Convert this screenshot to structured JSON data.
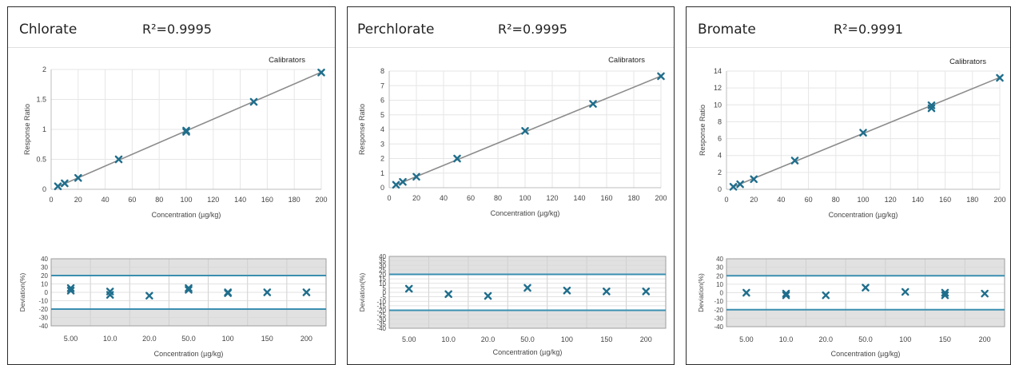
{
  "chart_data": [
    {
      "type": "scatter",
      "title": "Chlorate",
      "r2": "R²=0.9995",
      "legend": "Calibrators",
      "legend_position": "top-right",
      "calibration": {
        "xlabel": "Concentration (µg/kg)",
        "ylabel": "Response Ratio",
        "xlim": [
          0,
          200
        ],
        "ylim": [
          0,
          2
        ],
        "xticks": [
          "0",
          "20",
          "40",
          "60",
          "80",
          "100",
          "120",
          "140",
          "160",
          "180",
          "200"
        ],
        "yticks": [
          "0",
          "0.5",
          "1",
          "1.5",
          "2"
        ],
        "points": [
          [
            5,
            0.05
          ],
          [
            10,
            0.1
          ],
          [
            20,
            0.19
          ],
          [
            50,
            0.5
          ],
          [
            100,
            0.96
          ],
          [
            100,
            0.98
          ],
          [
            150,
            1.46
          ],
          [
            200,
            1.95
          ]
        ],
        "fit": [
          [
            5,
            0.045
          ],
          [
            200,
            1.955
          ]
        ]
      },
      "deviation": {
        "xlabel": "Concentration (µg/kg)",
        "ylabel": "Deviation(%)",
        "ylim": [
          -40,
          40
        ],
        "yticks": [
          "40",
          "30",
          "20",
          "10",
          "0",
          "-10",
          "-20",
          "-30",
          "-40"
        ],
        "limits": [
          20,
          -20
        ],
        "categories": [
          "5.00",
          "10.0",
          "20.0",
          "50.0",
          "100",
          "150",
          "200"
        ],
        "points": [
          [
            0,
            5
          ],
          [
            0,
            2
          ],
          [
            1,
            1
          ],
          [
            1,
            -3
          ],
          [
            2,
            -4
          ],
          [
            3,
            5
          ],
          [
            3,
            3
          ],
          [
            4,
            0
          ],
          [
            4,
            -1
          ],
          [
            5,
            0
          ],
          [
            6,
            0
          ]
        ]
      }
    },
    {
      "type": "scatter",
      "title": "Perchlorate",
      "r2": "R²=0.9995",
      "legend": "Calibrators",
      "legend_position": "top-right",
      "calibration": {
        "xlabel": "Concentration (µg/kg)",
        "ylabel": "Response Ratio",
        "xlim": [
          0,
          200
        ],
        "ylim": [
          0,
          8
        ],
        "xticks": [
          "0",
          "20",
          "40",
          "60",
          "80",
          "100",
          "120",
          "140",
          "160",
          "180",
          "200"
        ],
        "yticks": [
          "0",
          "1",
          "2",
          "3",
          "4",
          "5",
          "6",
          "7",
          "8"
        ],
        "points": [
          [
            5,
            0.2
          ],
          [
            10,
            0.4
          ],
          [
            20,
            0.75
          ],
          [
            50,
            2.0
          ],
          [
            100,
            3.9
          ],
          [
            150,
            5.75
          ],
          [
            200,
            7.65
          ]
        ],
        "fit": [
          [
            5,
            0.19
          ],
          [
            200,
            7.66
          ]
        ]
      },
      "deviation": {
        "xlabel": "Concentration (µg/kg)",
        "ylabel": "Deviation(%)",
        "ylim": [
          -40,
          40
        ],
        "yticks": [
          "40",
          "35",
          "30",
          "25",
          "20",
          "15",
          "10",
          "5",
          "0",
          "-5",
          "-10",
          "-15",
          "-20",
          "-25",
          "-30",
          "-35",
          "-40"
        ],
        "limits": [
          20,
          -20
        ],
        "categories": [
          "5.00",
          "10.0",
          "20.0",
          "50.0",
          "100",
          "150",
          "200"
        ],
        "points": [
          [
            0,
            4
          ],
          [
            1,
            -2
          ],
          [
            2,
            -4
          ],
          [
            3,
            5
          ],
          [
            4,
            2
          ],
          [
            5,
            1
          ],
          [
            6,
            1
          ]
        ]
      }
    },
    {
      "type": "scatter",
      "title": "Bromate",
      "r2": "R²=0.9991",
      "legend": "Calibrators",
      "legend_position": "top-right",
      "calibration": {
        "xlabel": "Concentration (µg/kg)",
        "ylabel": "Response Ratio",
        "xlim": [
          0,
          200
        ],
        "ylim": [
          0,
          14
        ],
        "xticks": [
          "0",
          "20",
          "40",
          "60",
          "80",
          "100",
          "120",
          "140",
          "160",
          "180",
          "200"
        ],
        "yticks": [
          "0",
          "2",
          "4",
          "6",
          "8",
          "10",
          "12",
          "14"
        ],
        "points": [
          [
            5,
            0.3
          ],
          [
            10,
            0.6
          ],
          [
            20,
            1.2
          ],
          [
            50,
            3.4
          ],
          [
            100,
            6.7
          ],
          [
            150,
            9.6
          ],
          [
            150,
            9.95
          ],
          [
            200,
            13.2
          ]
        ],
        "fit": [
          [
            5,
            0.3
          ],
          [
            200,
            13.25
          ]
        ]
      },
      "deviation": {
        "xlabel": "Concentration (µg/kg)",
        "ylabel": "Deviation(%)",
        "ylim": [
          -40,
          40
        ],
        "yticks": [
          "40",
          "30",
          "20",
          "10",
          "0",
          "-10",
          "-20",
          "-30",
          "-40"
        ],
        "limits": [
          20,
          -20
        ],
        "categories": [
          "5.00",
          "10.0",
          "20.0",
          "50.0",
          "100",
          "150",
          "200"
        ],
        "points": [
          [
            0,
            0
          ],
          [
            1,
            -1
          ],
          [
            1,
            -3
          ],
          [
            2,
            -3
          ],
          [
            3,
            6
          ],
          [
            4,
            1
          ],
          [
            5,
            0
          ],
          [
            5,
            -3
          ],
          [
            6,
            -1
          ]
        ]
      }
    }
  ],
  "colors": {
    "marker": "#1f6e8c",
    "fit_line": "#8c8c8c",
    "limit_line": "#3a8fb0",
    "band": "#e1e1e1",
    "grid": "#e6e6e6"
  }
}
